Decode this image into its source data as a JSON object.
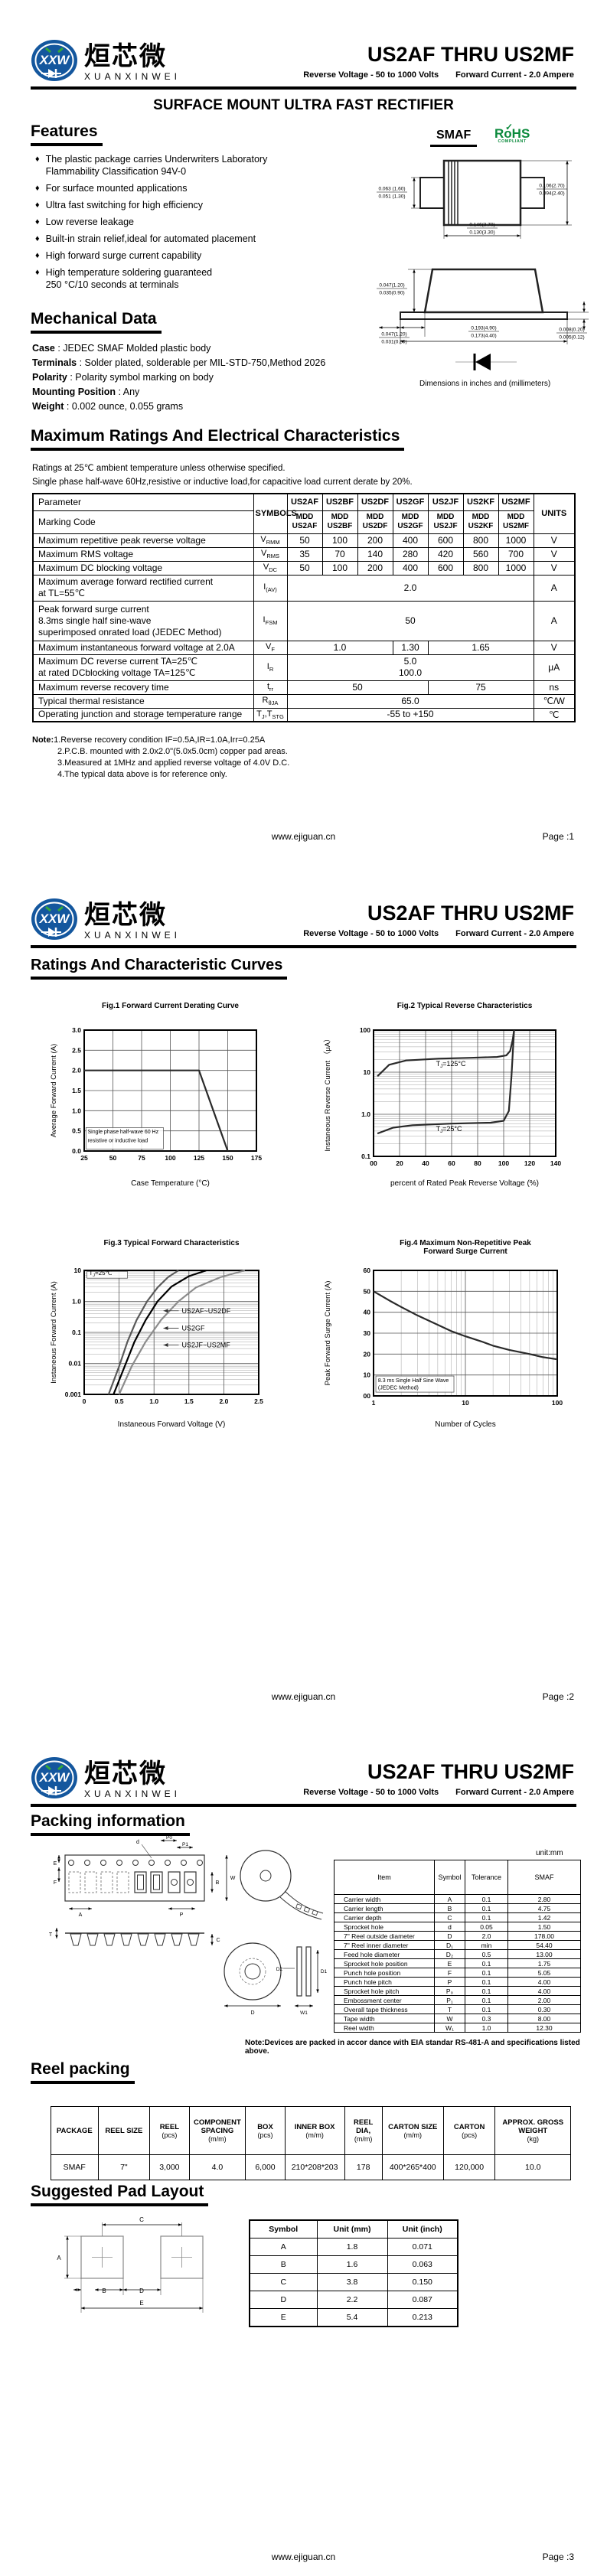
{
  "brand": {
    "logo_monogram": "XXW",
    "name_cn": "烜芯微",
    "name_en": "XUANXINWEI"
  },
  "header": {
    "title": "US2AF THRU US2MF",
    "subtitle1": "Reverse Voltage - 50 to 1000 Volts",
    "subtitle2": "Forward Current - 2.0 Ampere"
  },
  "footer": {
    "site": "www.ejiguan.cn",
    "page_labels": [
      "Page :1",
      "Page :2",
      "Page :3"
    ]
  },
  "page1": {
    "main_title": "SURFACE MOUNT ULTRA FAST  RECTIFIER",
    "features": {
      "heading": "Features",
      "bullet": "♦",
      "items": [
        "The plastic package carries Underwriters Laboratory\nFlammability Classification 94V-0",
        "For surface mounted applications",
        "Ultra fast switching for high efficiency",
        "Low reverse leakage",
        "Built-in strain relief,ideal for automated placement",
        "High forward surge current capability",
        "High temperature soldering guaranteed\n250 °C/10 seconds at terminals"
      ]
    },
    "mechanical": {
      "heading": "Mechanical Data",
      "rows": [
        {
          "label": "Case",
          "text": " : JEDEC SMAF Molded plastic body"
        },
        {
          "label": "Terminals",
          "text": " : Solder plated, solderable per MIL-STD-750,Method 2026"
        },
        {
          "label": "Polarity",
          "text": " : Polarity symbol  marking on body"
        },
        {
          "label": "Mounting Position",
          "text": " : Any"
        },
        {
          "label": "Weight",
          "text": " : 0.002 ounce, 0.055 grams"
        }
      ]
    },
    "package": {
      "name": "SMAF",
      "rohs_line1": "RoHS",
      "rohs_check": "✓",
      "rohs_line2": "COMPLIANT",
      "dims_note": "Dimensions in inches and (millimeters)",
      "top_dims": {
        "left": [
          "0.063 (1.60)",
          "0.051 (1.30)"
        ],
        "right": [
          "0.106(2.70)",
          "0.094(2.40)"
        ],
        "bottom": [
          "0.146(3.70)",
          "0.130(3.30)"
        ]
      },
      "side_dims": {
        "upleft": [
          "0.047(1.20)",
          "0.035(0.90)"
        ],
        "lowleft": [
          "0.047(1.20)",
          "0.031(0.80)"
        ],
        "right": [
          "0.008(0.20)",
          "0.005(0.12)"
        ],
        "bottom": [
          "0.193(4.90)",
          "0.173(4.40)"
        ]
      }
    },
    "ratings": {
      "heading": "Maximum Ratings And Electrical Characteristics",
      "cond1": "Ratings at 25℃ ambient temperature unless otherwise specified.",
      "cond2": "Single phase half-wave 60Hz,resistive or inductive load,for capacitive load current derate by 20%.",
      "table": {
        "param_header": "Parameter",
        "marking_header": "Marking Code",
        "symbols_header": "SYMBOLS",
        "units_header": "UNITS",
        "parts": [
          "US2AF",
          "US2BF",
          "US2DF",
          "US2GF",
          "US2JF",
          "US2KF",
          "US2MF"
        ],
        "marking": [
          "MDD\nUS2AF",
          "MDD\nUS2BF",
          "MDD\nUS2DF",
          "MDD\nUS2GF",
          "MDD\nUS2JF",
          "MDD\nUS2KF",
          "MDD\nUS2MF"
        ],
        "rows": [
          {
            "label": "Maximum repetitive peak reverse voltage",
            "sym": [
              "V",
              "_RMM"
            ],
            "cells": [
              {
                "v": "50"
              },
              {
                "v": "100"
              },
              {
                "v": "200"
              },
              {
                "v": "400"
              },
              {
                "v": "600"
              },
              {
                "v": "800"
              },
              {
                "v": "1000"
              }
            ],
            "unit": "V"
          },
          {
            "label": "Maximum RMS voltage",
            "sym": [
              "V",
              "_RMS"
            ],
            "cells": [
              {
                "v": "35"
              },
              {
                "v": "70"
              },
              {
                "v": "140"
              },
              {
                "v": "280"
              },
              {
                "v": "420"
              },
              {
                "v": "560"
              },
              {
                "v": "700"
              }
            ],
            "unit": "V"
          },
          {
            "label": "Maximum DC blocking voltage",
            "sym": [
              "V",
              "_DC"
            ],
            "cells": [
              {
                "v": "50"
              },
              {
                "v": "100"
              },
              {
                "v": "200"
              },
              {
                "v": "400"
              },
              {
                "v": "600"
              },
              {
                "v": "800"
              },
              {
                "v": "1000"
              }
            ],
            "unit": "V"
          },
          {
            "label": "Maximum average forward rectified current\nat TL=55℃",
            "sym": [
              "I",
              "_(AV)"
            ],
            "cells": [
              {
                "v": "2.0",
                "span": 7
              }
            ],
            "unit": "A"
          },
          {
            "label": "Peak forward surge current\n8.3ms single half sine-wave\nsuperimposed onrated load (JEDEC Method)",
            "sym": [
              "I",
              "_FSM"
            ],
            "cells": [
              {
                "v": "50",
                "span": 7
              }
            ],
            "unit": "A"
          },
          {
            "label": "Maximum instantaneous forward voltage at 2.0A",
            "sym": [
              "V",
              "_F"
            ],
            "cells": [
              {
                "v": "1.0",
                "span": 3
              },
              {
                "v": "1.30",
                "span": 1
              },
              {
                "v": "1.65",
                "span": 3
              }
            ],
            "unit": "V"
          },
          {
            "label": "Maximum DC reverse current      TA=25℃\nat rated DCblocking voltage      TA=125℃",
            "sym": [
              "I",
              "_R"
            ],
            "cells": [
              {
                "v": "5.0\n100.0",
                "span": 7
              }
            ],
            "unit": "μA"
          },
          {
            "label": "Maximum reverse recovery time",
            "sym": [
              "t",
              "_rr"
            ],
            "cells": [
              {
                "v": "50",
                "span": 4
              },
              {
                "v": "75",
                "span": 3
              }
            ],
            "unit": "ns"
          },
          {
            "label": "Typical thermal resistance",
            "sym": [
              "R",
              "_θJA"
            ],
            "cells": [
              {
                "v": "65.0",
                "span": 7
              }
            ],
            "unit": "℃/W"
          },
          {
            "label": "Operating junction and storage temperature range",
            "sym": [
              "T",
              "_J",
              ",T",
              "_STG"
            ],
            "cells": [
              {
                "v": "-55 to +150",
                "span": 7
              }
            ],
            "unit": "℃"
          }
        ]
      }
    },
    "notes": {
      "label": "Note:",
      "items": [
        "1.Reverse recovery condition IF=0.5A,IR=1.0A,Irr=0.25A",
        "2.P.C.B. mounted with 2.0x2.0\"(5.0x5.0cm) copper pad areas.",
        "3.Measured at 1MHz and applied reverse voltage of 4.0V D.C.",
        "4.The typical data above is for reference only."
      ]
    }
  },
  "page2": {
    "heading": "Ratings And Characteristic Curves"
  },
  "chart_data": [
    {
      "id": "fig1",
      "type": "line",
      "title": "Fig.1  Forward Current Derating Curve",
      "xlabel": "Case Temperature (°C)",
      "ylabel": "Average Forward Current (A)",
      "xlim": [
        25,
        175
      ],
      "ylim": [
        0,
        3
      ],
      "xtick_vals": [
        25,
        50,
        75,
        100,
        125,
        150,
        175
      ],
      "xtick_labels": [
        "25",
        "50",
        "75",
        "100",
        "125",
        "150",
        "175"
      ],
      "ytick_vals": [
        0,
        0.5,
        1,
        1.5,
        2,
        2.5,
        3
      ],
      "ytick_labels": [
        "0.0",
        "0.5",
        "1.0",
        "1.5",
        "2.0",
        "2.5",
        "3.0"
      ],
      "annotation": "Single phase half-wave 60 Hz\nresistive or inductive load",
      "series": [
        {
          "name": "derating",
          "points": [
            [
              25,
              2
            ],
            [
              125,
              2
            ],
            [
              150,
              0
            ]
          ]
        }
      ]
    },
    {
      "id": "fig2",
      "type": "line",
      "ylog": true,
      "title": "Fig.2  Typical Reverse Characteristics",
      "xlabel": "percent of Rated  Peak Reverse Voltage (%)",
      "ylabel": "Instaneous Reverse Current （μA）",
      "xlim": [
        0,
        140
      ],
      "ylim": [
        0.1,
        100
      ],
      "xtick_vals": [
        0,
        20,
        40,
        60,
        80,
        100,
        120,
        140
      ],
      "xtick_labels": [
        "00",
        "20",
        "40",
        "60",
        "80",
        "100",
        "120",
        "140"
      ],
      "ytick_vals": [
        0.1,
        1,
        10,
        100
      ],
      "ytick_labels": [
        "0.1",
        "1.0",
        "10",
        "100"
      ],
      "series": [
        {
          "name": "TJ=125°C",
          "points": [
            [
              3,
              8
            ],
            [
              12,
              15
            ],
            [
              25,
              19
            ],
            [
              50,
              21
            ],
            [
              75,
              22
            ],
            [
              95,
              23
            ],
            [
              102,
              25
            ],
            [
              105,
              32
            ],
            [
              107,
              60
            ],
            [
              108,
              100
            ]
          ]
        },
        {
          "name": "TJ=25°C",
          "points": [
            [
              3,
              0.35
            ],
            [
              15,
              0.48
            ],
            [
              30,
              0.55
            ],
            [
              60,
              0.6
            ],
            [
              90,
              0.63
            ],
            [
              100,
              0.7
            ],
            [
              104,
              1.2
            ],
            [
              106,
              8
            ],
            [
              108,
              100
            ]
          ]
        }
      ],
      "curve_labels": [
        "TJ=125°C",
        "TJ=25°C"
      ]
    },
    {
      "id": "fig3",
      "type": "line",
      "ylog": true,
      "title": "Fig.3  Typical Forward Characteristics",
      "xlabel": "Instaneous Forward Voltage (V)",
      "ylabel": "Instaneous Forward Current (A)",
      "xlim": [
        0,
        2.5
      ],
      "ylim": [
        0.001,
        10
      ],
      "xtick_vals": [
        0,
        0.5,
        1,
        1.5,
        2,
        2.5
      ],
      "xtick_labels": [
        "0",
        "0.5",
        "1.0",
        "1.5",
        "2.0",
        "2.5"
      ],
      "ytick_vals": [
        0.001,
        0.01,
        0.1,
        1,
        10
      ],
      "ytick_labels": [
        "0.001",
        "0.01",
        "0.1",
        "1.0",
        "10"
      ],
      "annotation": "TJ=25℃",
      "series": [
        {
          "name": "US2AF~US2DF",
          "points": [
            [
              0.35,
              0.001
            ],
            [
              0.5,
              0.008
            ],
            [
              0.62,
              0.05
            ],
            [
              0.75,
              0.25
            ],
            [
              0.9,
              1
            ],
            [
              1.05,
              2.8
            ],
            [
              1.2,
              6
            ],
            [
              1.35,
              10
            ]
          ]
        },
        {
          "name": "US2GF",
          "points": [
            [
              0.42,
              0.001
            ],
            [
              0.58,
              0.008
            ],
            [
              0.72,
              0.05
            ],
            [
              0.88,
              0.25
            ],
            [
              1.05,
              1
            ],
            [
              1.25,
              3
            ],
            [
              1.5,
              6.5
            ],
            [
              1.75,
              10
            ]
          ]
        },
        {
          "name": "US2JF~US2MF",
          "points": [
            [
              0.5,
              0.001
            ],
            [
              0.68,
              0.008
            ],
            [
              0.88,
              0.05
            ],
            [
              1.1,
              0.25
            ],
            [
              1.35,
              1
            ],
            [
              1.6,
              2.8
            ],
            [
              1.95,
              6
            ],
            [
              2.3,
              10
            ]
          ]
        }
      ],
      "curve_labels": [
        "US2AF~US2DF",
        "US2GF",
        "US2JF~US2MF"
      ]
    },
    {
      "id": "fig4",
      "type": "line",
      "xlog": true,
      "title": "Fig.4  Maximum Non-Repetitive Peak\nForward Surge Current",
      "xlabel": "Number of Cycles",
      "ylabel": "Peak Forward Surge Current (A)",
      "xlim": [
        1,
        100
      ],
      "ylim": [
        0,
        60
      ],
      "xtick_vals": [
        1,
        10,
        100
      ],
      "xtick_labels": [
        "1",
        "10",
        "100"
      ],
      "ytick_vals": [
        0,
        10,
        20,
        30,
        40,
        50,
        60
      ],
      "ytick_labels": [
        "00",
        "10",
        "20",
        "30",
        "40",
        "50",
        "60"
      ],
      "annotation": "8.3 ms Single Half Sine Wave\n(JEDEC Method)",
      "series": [
        {
          "name": "surge",
          "points": [
            [
              1,
              50
            ],
            [
              1.5,
              45.5
            ],
            [
              2,
              42.5
            ],
            [
              3,
              38.5
            ],
            [
              5,
              34
            ],
            [
              7,
              31
            ],
            [
              10,
              28.5
            ],
            [
              15,
              26
            ],
            [
              20,
              24
            ],
            [
              30,
              22
            ],
            [
              50,
              20
            ],
            [
              70,
              18.5
            ],
            [
              100,
              17.5
            ]
          ]
        }
      ]
    }
  ],
  "page3": {
    "packing": {
      "heading": "Packing information",
      "unit_note": "unit:mm",
      "headers": [
        "Item",
        "Symbol",
        "Tolerance",
        "SMAF"
      ],
      "rows": [
        [
          "Carrier width",
          "A",
          "0.1",
          "2.80"
        ],
        [
          "Carrier length",
          "B",
          "0.1",
          "4.75"
        ],
        [
          "Carrier depth",
          "C",
          "0.1",
          "1.42"
        ],
        [
          "Sprocket hole",
          "d",
          "0.05",
          "1.50"
        ],
        [
          "7\" Reel outside diameter",
          "D",
          "2.0",
          "178.00"
        ],
        [
          "7\" Reel inner diameter",
          "D₁",
          "min",
          "54.40"
        ],
        [
          "Feed hole diameter",
          "D₂",
          "0.5",
          "13.00"
        ],
        [
          "Sprocket hole position",
          "E",
          "0.1",
          "1.75"
        ],
        [
          "Punch hole position",
          "F",
          "0.1",
          "5.05"
        ],
        [
          "Punch hole pitch",
          "P",
          "0.1",
          "4.00"
        ],
        [
          "Sprocket hole pitch",
          "P₀",
          "0.1",
          "4.00"
        ],
        [
          "Embossment center",
          "P₁",
          "0.1",
          "2.00"
        ],
        [
          "Overall tape thickness",
          "T",
          "0.1",
          "0.30"
        ],
        [
          "Tape width",
          "W",
          "0.3",
          "8.00"
        ],
        [
          "Reel width",
          "W₁",
          "1.0",
          "12.30"
        ]
      ],
      "note": "Note:Devices are packed in accor dance with EIA standar RS-481-A and specifications listed above.",
      "drawing_labels": [
        "E",
        "F",
        "A",
        "d",
        "P0",
        "P1",
        "P",
        "B",
        "W",
        "T",
        "C",
        "D",
        "D1",
        "D2",
        "W1"
      ]
    },
    "reel": {
      "heading": "Reel packing",
      "headers": [
        [
          "PACKAGE",
          ""
        ],
        [
          "REEL SIZE",
          ""
        ],
        [
          "REEL",
          "(pcs)"
        ],
        [
          "COMPONENT SPACING",
          "(m/m)"
        ],
        [
          "BOX",
          "(pcs)"
        ],
        [
          "INNER BOX",
          "(m/m)"
        ],
        [
          "REEL DIA,",
          "(m/m)"
        ],
        [
          "CARTON SIZE",
          "(m/m)"
        ],
        [
          "CARTON",
          "(pcs)"
        ],
        [
          "APPROX. GROSS WEIGHT",
          "(kg)"
        ]
      ],
      "row": [
        "SMAF",
        "7\"",
        "3,000",
        "4.0",
        "6,000",
        "210*208*203",
        "178",
        "400*265*400",
        "120,000",
        "10.0"
      ]
    },
    "pad": {
      "heading": "Suggested Pad Layout",
      "headers": [
        "Symbol",
        "Unit (mm)",
        "Unit (inch)"
      ],
      "rows": [
        [
          "A",
          "1.8",
          "0.071"
        ],
        [
          "B",
          "1.6",
          "0.063"
        ],
        [
          "C",
          "3.8",
          "0.150"
        ],
        [
          "D",
          "2.2",
          "0.087"
        ],
        [
          "E",
          "5.4",
          "0.213"
        ]
      ],
      "drawing_labels": [
        "A",
        "B",
        "C",
        "D",
        "E"
      ]
    }
  }
}
